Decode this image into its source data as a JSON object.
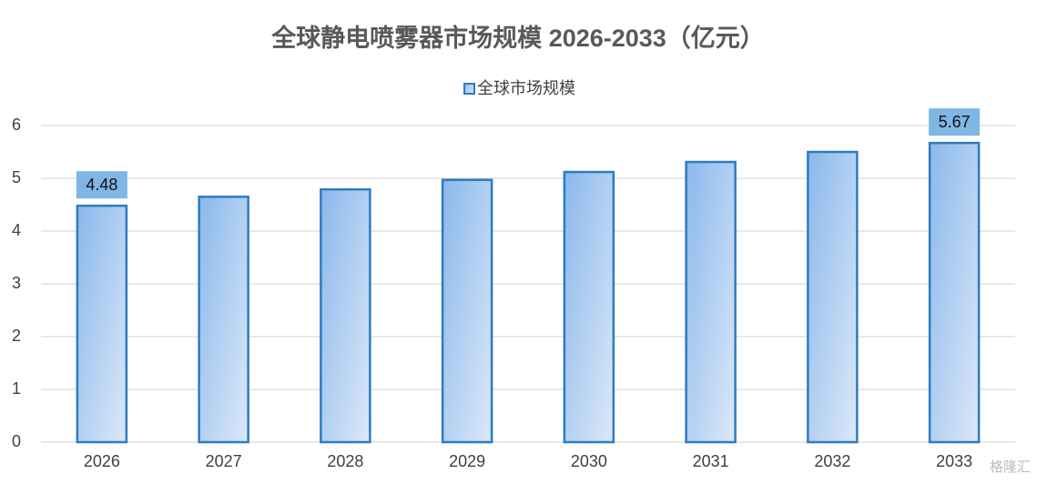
{
  "chart_data": {
    "type": "bar",
    "title": "全球静电喷雾器市场规模 2026-2033（亿元）",
    "categories": [
      "2026",
      "2027",
      "2028",
      "2029",
      "2030",
      "2031",
      "2032",
      "2033"
    ],
    "series": [
      {
        "name": "全球市场规模",
        "color": "#2e7bbf",
        "values": [
          4.48,
          4.65,
          4.79,
          4.97,
          5.12,
          5.31,
          5.5,
          5.67
        ],
        "value_labels": [
          "4.48",
          null,
          null,
          null,
          null,
          null,
          null,
          "5.67"
        ]
      }
    ],
    "ylim": [
      0,
      6
    ],
    "yticks": [
      0,
      1,
      2,
      3,
      4,
      5,
      6
    ],
    "grid": true,
    "legend": "top",
    "watermark": "格隆汇"
  }
}
